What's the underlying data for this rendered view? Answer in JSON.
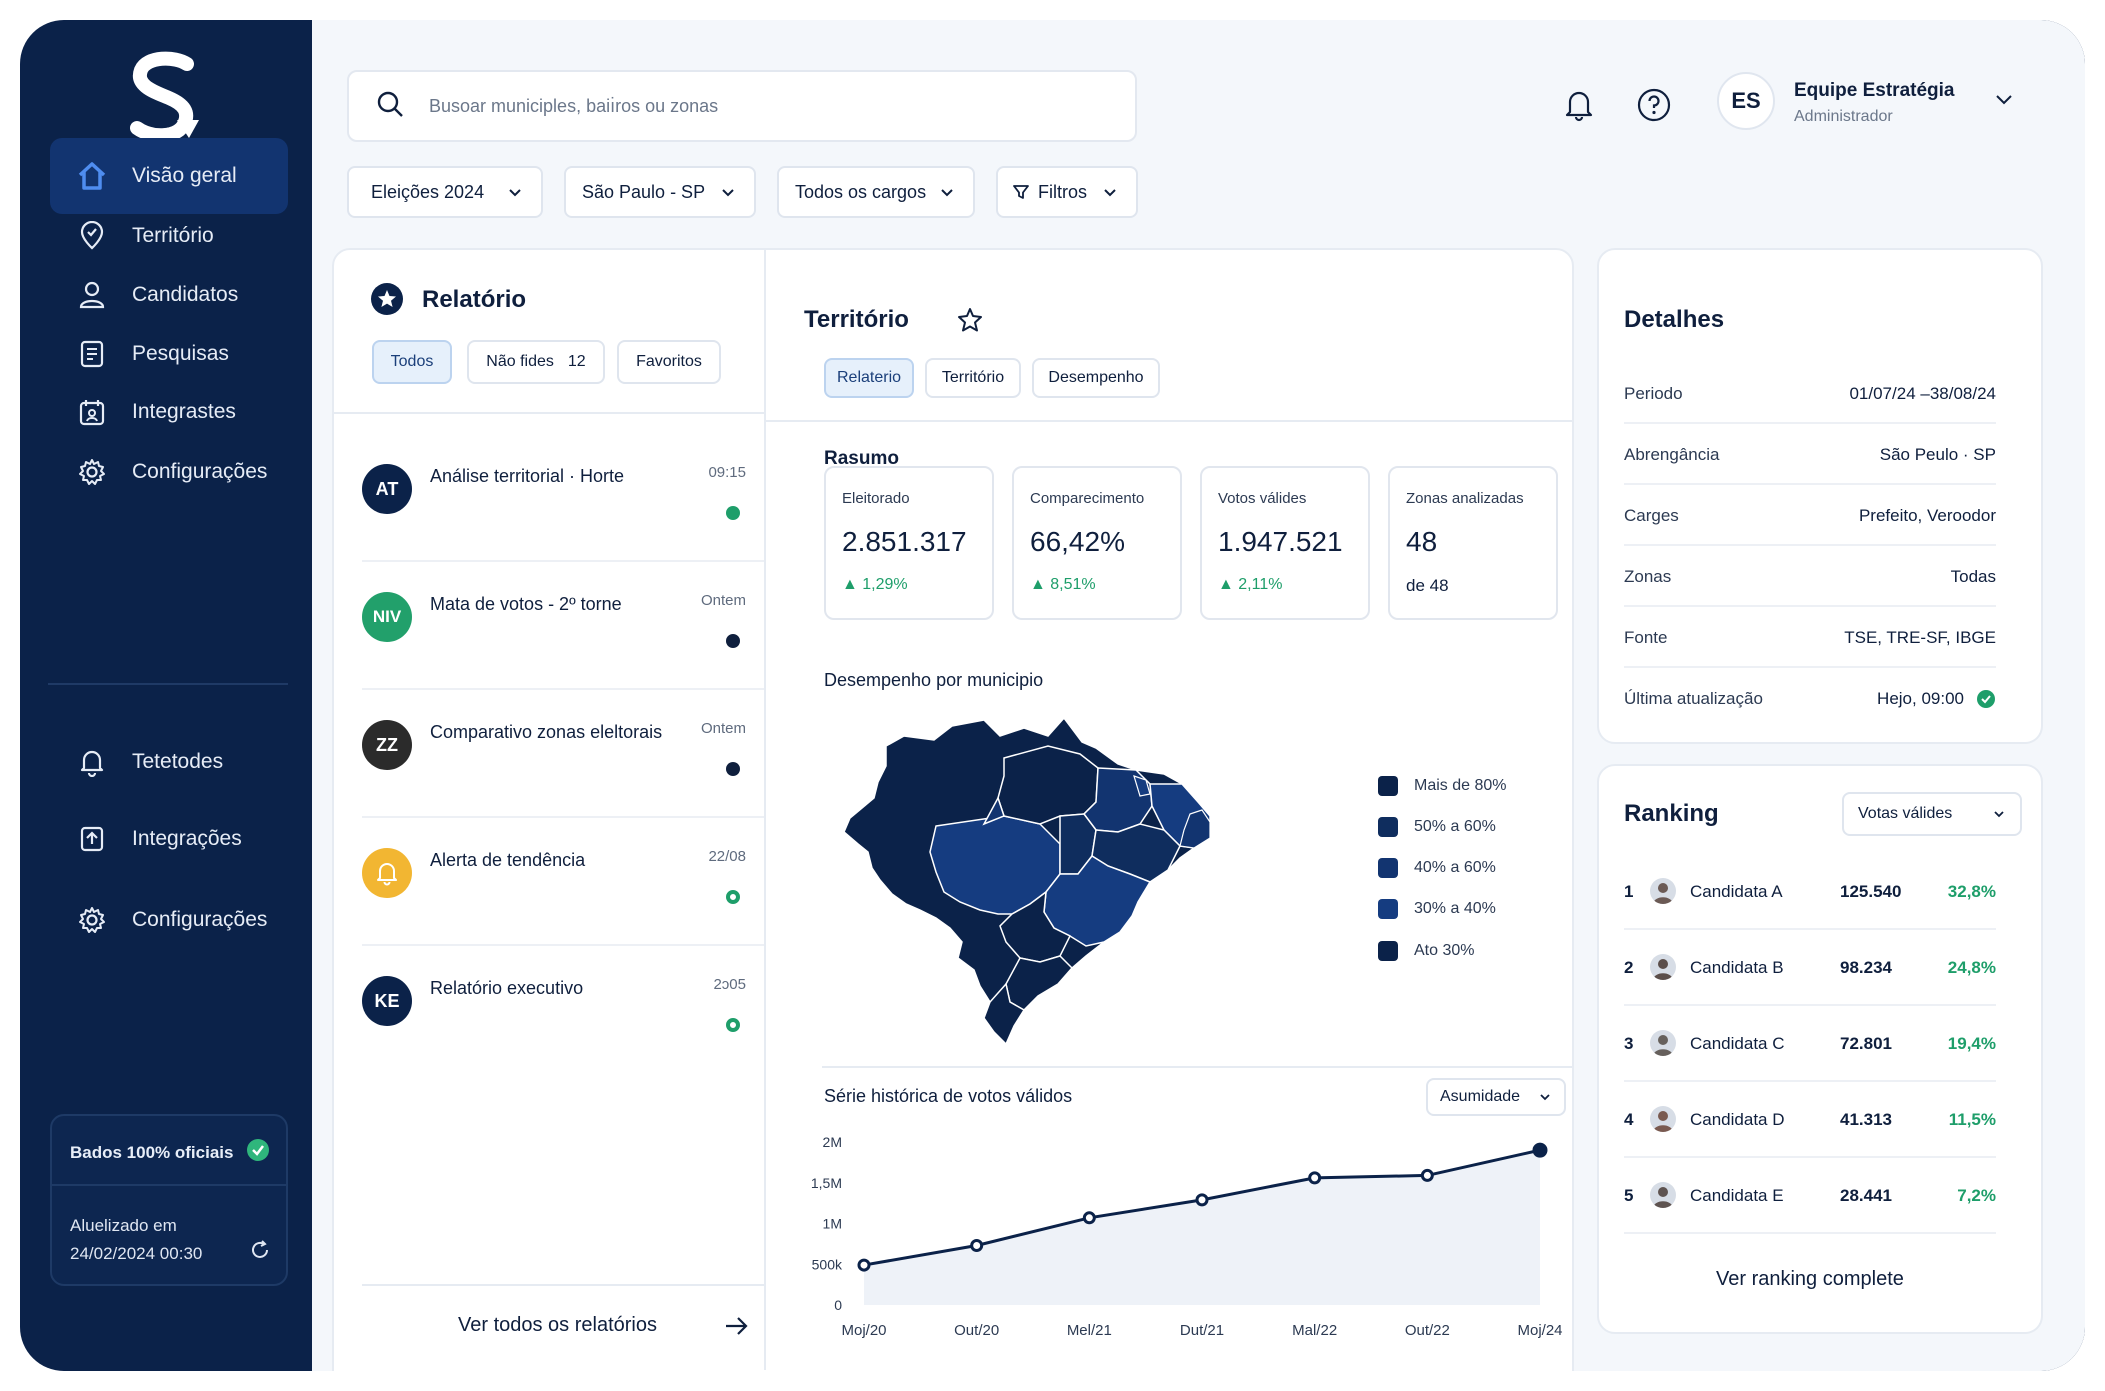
{
  "sidebar": {
    "items": [
      {
        "label": "Visão geral",
        "icon": "home-icon",
        "active": true
      },
      {
        "label": "Território",
        "icon": "map-pin-icon"
      },
      {
        "label": "Candidatos",
        "icon": "user-icon"
      },
      {
        "label": "Pesquisas",
        "icon": "document-icon"
      },
      {
        "label": "Integrastes",
        "icon": "calendar-user-icon"
      },
      {
        "label": "Configurações",
        "icon": "gear-icon"
      }
    ],
    "items2": [
      {
        "label": "Tetetodes",
        "icon": "bell-icon"
      },
      {
        "label": "Integrações",
        "icon": "upload-icon"
      },
      {
        "label": "Configurações",
        "icon": "gear-icon"
      }
    ],
    "status": {
      "label": "Bados 100% oficiais",
      "updated_label": "Aluelizado em",
      "updated_value": "24/02/2024 00:30"
    }
  },
  "header": {
    "search_placeholder": "Busoar municiples, baiı̇ros ou zonas",
    "user_initials": "ES",
    "user_name": "Equipe Estratégia",
    "user_role": "Administrador"
  },
  "filters": [
    "Eleições 2024",
    "São Paulo - SP",
    "Todos os cargos",
    "Filtros"
  ],
  "reports": {
    "title": "Relatório",
    "tabs": [
      {
        "label": "Todos",
        "active": true
      },
      {
        "label": "Não fides",
        "count": "12"
      },
      {
        "label": "Favoritos"
      }
    ],
    "items": [
      {
        "initials": "AT",
        "title": "Análise territorial · Horte",
        "time": "09:15",
        "color": "#0b2249",
        "dot": "#1e9e6a"
      },
      {
        "initials": "NIV",
        "title": "Mata de votos - 2º torne",
        "time": "Ontem",
        "color": "#22a06b",
        "dot": "#0f1f3d"
      },
      {
        "initials": "ZZ",
        "title": "Comparativo zonas eleltorais",
        "time": "Ontem",
        "color": "#2b2b2b",
        "dot": "#0f1f3d"
      },
      {
        "initials": "",
        "title": "Alerta de tendência",
        "time": "22/08",
        "color": "#f2b632",
        "dot": "#1e9e6a"
      },
      {
        "initials": "KE",
        "title": "Relatório executivo",
        "time": "2ɔ05",
        "color": "#0b2249",
        "dot": "#1e9e6a"
      }
    ],
    "footer_link": "Ver todos os relatórios"
  },
  "territory": {
    "title": "Território",
    "tabs": [
      {
        "label": "Relaterio",
        "active": true
      },
      {
        "label": "Território"
      },
      {
        "label": "Desempenho"
      }
    ],
    "summary_title": "Rasumo",
    "kpis": [
      {
        "label": "Eleitorado",
        "value": "2.851.317",
        "delta": "1,29%"
      },
      {
        "label": "Comparecimento",
        "value": "66,42%",
        "delta": "8,51%"
      },
      {
        "label": "Votos válides",
        "value": "1.947.521",
        "delta": "2,11%"
      },
      {
        "label": "Zonas analizadas",
        "value": "48",
        "sub": "de 48"
      }
    ],
    "map_title": "Desempenho por municipio",
    "legend": [
      {
        "label": "Mais de 80%",
        "color": "#0b2249"
      },
      {
        "label": "50% a 60%",
        "color": "#0f2d5e"
      },
      {
        "label": "40% a 60%",
        "color": "#123470"
      },
      {
        "label": "30% a 40%",
        "color": "#153c80"
      },
      {
        "label": "Ato 30%",
        "color": "#0b2249"
      }
    ],
    "series_title": "Série histórica de votos válidos",
    "series_select": "Asumidade"
  },
  "details": {
    "title": "Detalhes",
    "rows": [
      {
        "key": "Periodo",
        "value": "01/07/24 –38/08/24"
      },
      {
        "key": "Abrengância",
        "value": "São Peulo · SP"
      },
      {
        "key": "Carges",
        "value": "Prefeito, Veroodor"
      },
      {
        "key": "Zonas",
        "value": "Todas"
      },
      {
        "key": "Fonte",
        "value": "TSE, TRE-SF, IBGE"
      },
      {
        "key": "Última atualização",
        "value": "Hejo, 09:00"
      }
    ]
  },
  "ranking": {
    "title": "Ranking",
    "select": "Votas válides",
    "rows": [
      {
        "pos": "1",
        "name": "Candidata A",
        "votes": "125.540",
        "pct": "32,8%"
      },
      {
        "pos": "2",
        "name": "Candidata B",
        "votes": "98.234",
        "pct": "24,8%"
      },
      {
        "pos": "3",
        "name": "Candidata C",
        "votes": "72.801",
        "pct": "19,4%"
      },
      {
        "pos": "4",
        "name": "Candidata D",
        "votes": "41.313",
        "pct": "11,5%"
      },
      {
        "pos": "5",
        "name": "Candidata E",
        "votes": "28.441",
        "pct": "7,2%"
      }
    ],
    "footer_link": "Ver ranking complete"
  },
  "chart_data": {
    "type": "area",
    "x": [
      "Moj/20",
      "Out/20",
      "Mel/21",
      "Dut/21",
      "Mal/22",
      "Out/22",
      "Moj/24"
    ],
    "yticks": [
      "0",
      "500k",
      "1M",
      "1,5M",
      "2M"
    ],
    "points": [
      {
        "x": "Moj/20",
        "y": 490000
      },
      {
        "x": "Out/20",
        "y": 730000
      },
      {
        "x": "Mel/21",
        "y": 1070000
      },
      {
        "x": "Dut/21",
        "y": 1290000
      },
      {
        "x": "Mal/22",
        "y": 1560000
      },
      {
        "x": "Out/22",
        "y": 1590000
      },
      {
        "x": "Moj/24",
        "y": 1900000
      }
    ],
    "ylim": [
      0,
      2000000
    ],
    "color": "#0b2249",
    "grid": false
  }
}
